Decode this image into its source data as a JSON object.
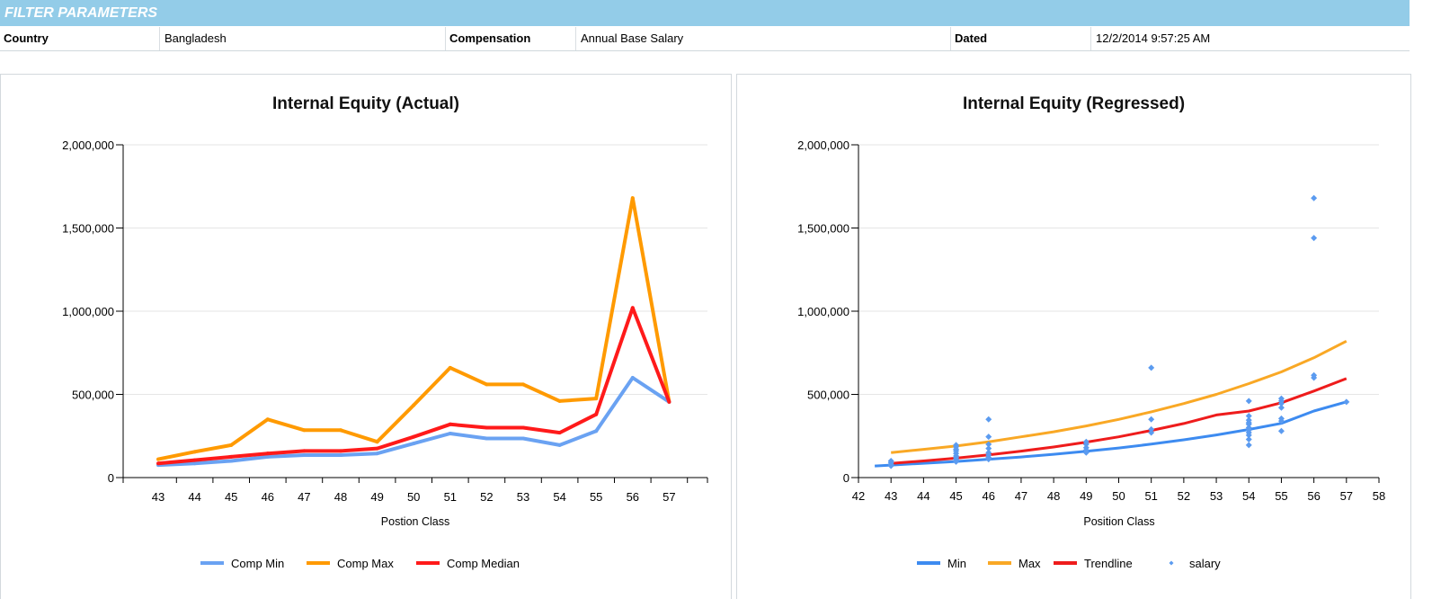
{
  "filter": {
    "title": "FILTER PARAMETERS",
    "country_label": "Country",
    "country_value": "Bangladesh",
    "compensation_label": "Compensation",
    "compensation_value": "Annual Base Salary",
    "dated_label": "Dated",
    "dated_value": "12/2/2014 9:57:25 AM"
  },
  "chart_data": [
    {
      "type": "line",
      "title": "Internal Equity (Actual)",
      "xlabel": "Postion Class",
      "ylabel": "",
      "ylim": [
        0,
        2000000
      ],
      "yticks": [
        0,
        500000,
        1000000,
        1500000,
        2000000
      ],
      "ytick_labels": [
        "0",
        "500,000",
        "1,000,000",
        "1,500,000",
        "2,000,000"
      ],
      "categories": [
        "43",
        "44",
        "45",
        "46",
        "47",
        "48",
        "49",
        "50",
        "51",
        "52",
        "53",
        "54",
        "55",
        "56",
        "57"
      ],
      "grid": "horizontal",
      "legend": "bottom",
      "series": [
        {
          "name": "Comp Min",
          "color": "#6aa2f2",
          "values": [
            75000,
            85000,
            100000,
            125000,
            135000,
            135000,
            145000,
            205000,
            265000,
            235000,
            235000,
            195000,
            280000,
            600000,
            455000
          ]
        },
        {
          "name": "Comp Max",
          "color": "#ff9a00",
          "values": [
            110000,
            155000,
            195000,
            350000,
            285000,
            285000,
            215000,
            435000,
            660000,
            560000,
            560000,
            460000,
            475000,
            1680000,
            455000
          ]
        },
        {
          "name": "Comp Median",
          "color": "#ff1a1a",
          "values": [
            85000,
            105000,
            125000,
            145000,
            160000,
            160000,
            175000,
            245000,
            320000,
            300000,
            300000,
            270000,
            380000,
            1020000,
            455000
          ]
        }
      ]
    },
    {
      "type": "scatter",
      "title": "Internal Equity (Regressed)",
      "xlabel": "Position Class",
      "ylabel": "",
      "xlim": [
        42,
        58
      ],
      "xticks": [
        42,
        43,
        44,
        45,
        46,
        47,
        48,
        49,
        50,
        51,
        52,
        53,
        54,
        55,
        56,
        57,
        58
      ],
      "ylim": [
        0,
        2000000
      ],
      "yticks": [
        0,
        500000,
        1000000,
        1500000,
        2000000
      ],
      "ytick_labels": [
        "0",
        "500,000",
        "1,000,000",
        "1,500,000",
        "2,000,000"
      ],
      "grid": "horizontal",
      "legend": "bottom",
      "series": [
        {
          "name": "Min",
          "kind": "line",
          "color": "#3d8bf0",
          "x": [
            42.5,
            43,
            44,
            45,
            46,
            47,
            48,
            49,
            50,
            51,
            52,
            53,
            54,
            55,
            56,
            57
          ],
          "values": [
            70000,
            75000,
            86000,
            97000,
            110000,
            124000,
            140000,
            158000,
            178000,
            201000,
            227000,
            256000,
            289000,
            326000,
            400000,
            455000
          ]
        },
        {
          "name": "Max",
          "kind": "line",
          "color": "#f9a825",
          "x": [
            43,
            44,
            45,
            46,
            47,
            48,
            49,
            50,
            51,
            52,
            53,
            54,
            55,
            56,
            57
          ],
          "values": [
            150000,
            170000,
            190000,
            215000,
            245000,
            275000,
            310000,
            350000,
            395000,
            445000,
            500000,
            565000,
            635000,
            720000,
            820000
          ]
        },
        {
          "name": "Trendline",
          "kind": "line",
          "color": "#ee1c1c",
          "x": [
            43,
            44,
            45,
            46,
            47,
            48,
            49,
            50,
            51,
            52,
            53,
            54,
            55,
            56,
            57
          ],
          "values": [
            85000,
            100000,
            117000,
            137000,
            159000,
            184000,
            213000,
            245000,
            283000,
            325000,
            376000,
            400000,
            450000,
            520000,
            595000
          ]
        },
        {
          "name": "salary",
          "kind": "points",
          "color": "#5b9bf0",
          "x": [
            43,
            43,
            43,
            43,
            45,
            45,
            45,
            45,
            45,
            45,
            45,
            45,
            45,
            46,
            46,
            46,
            46,
            46,
            46,
            46,
            46,
            49,
            49,
            49,
            49,
            49,
            51,
            51,
            51,
            51,
            54,
            54,
            54,
            54,
            54,
            54,
            54,
            54,
            54,
            54,
            54,
            55,
            55,
            55,
            55,
            55,
            55,
            55,
            56,
            56,
            56,
            56,
            57
          ],
          "values": [
            70000,
            80000,
            90000,
            100000,
            95000,
            110000,
            120000,
            130000,
            145000,
            160000,
            170000,
            185000,
            195000,
            110000,
            120000,
            135000,
            150000,
            175000,
            200000,
            245000,
            350000,
            150000,
            165000,
            180000,
            200000,
            215000,
            270000,
            290000,
            350000,
            660000,
            195000,
            230000,
            255000,
            270000,
            285000,
            300000,
            320000,
            330000,
            345000,
            370000,
            460000,
            280000,
            340000,
            355000,
            420000,
            445000,
            460000,
            475000,
            600000,
            615000,
            1440000,
            1680000,
            455000
          ]
        }
      ]
    }
  ]
}
